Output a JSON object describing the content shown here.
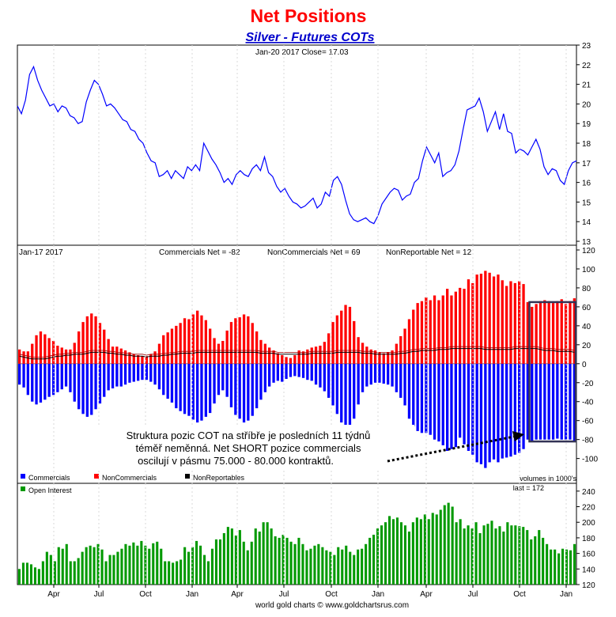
{
  "title": "Net Positions",
  "subtitle": "Silver - Futures COTs",
  "footer": "world gold charts © www.goldchartsrus.com",
  "colors": {
    "title": "#ff0000",
    "subtitle": "#0000cc",
    "price_line": "#0000ff",
    "commercials": "#0000ff",
    "noncommercials": "#ff0000",
    "nonreportables": "#000000",
    "open_interest": "#009900",
    "annotation_box": "#333355"
  },
  "x_tick_labels": [
    "Apr",
    "Jul",
    "Oct",
    "Jan",
    "Apr",
    "Jul",
    "Oct",
    "Jan",
    "Apr",
    "Jul",
    "Oct",
    "Jan"
  ],
  "chart_data": [
    {
      "type": "line",
      "header": "Jan-20  2017   Close= 17.03",
      "series": [
        {
          "name": "",
          "values": [
            19.9,
            19.5,
            20.2,
            21.5,
            21.9,
            21.2,
            20.7,
            20.3,
            19.9,
            20.0,
            19.6,
            19.9,
            19.8,
            19.4,
            19.3,
            19.0,
            19.1,
            20.1,
            20.7,
            21.2,
            21.0,
            20.5,
            19.9,
            20.0,
            19.8,
            19.5,
            19.2,
            19.1,
            18.7,
            18.6,
            18.2,
            18.0,
            17.5,
            17.1,
            17.0,
            16.3,
            16.4,
            16.6,
            16.2,
            16.6,
            16.4,
            16.2,
            16.8,
            16.6,
            16.9,
            16.6,
            18.0,
            17.6,
            17.2,
            16.9,
            16.5,
            16.0,
            16.2,
            15.9,
            16.4,
            16.6,
            16.4,
            16.3,
            16.7,
            16.9,
            16.6,
            17.3,
            16.5,
            16.3,
            15.8,
            15.5,
            15.7,
            15.3,
            15.0,
            14.9,
            14.7,
            14.8,
            15.0,
            15.2,
            14.7,
            14.9,
            15.5,
            15.3,
            16.1,
            16.3,
            15.9,
            15.1,
            14.4,
            14.1,
            14.0,
            14.1,
            14.2,
            14.0,
            13.9,
            14.3,
            14.9,
            15.2,
            15.5,
            15.7,
            15.6,
            15.1,
            15.3,
            15.4,
            16.0,
            16.2,
            17.1,
            17.8,
            17.4,
            17.0,
            17.5,
            16.3,
            16.5,
            16.6,
            16.9,
            17.6,
            18.7,
            19.7,
            19.8,
            19.9,
            20.3,
            19.6,
            18.6,
            19.1,
            19.6,
            18.7,
            19.5,
            18.6,
            18.5,
            17.5,
            17.7,
            17.6,
            17.4,
            17.8,
            18.2,
            17.7,
            16.8,
            16.4,
            16.7,
            16.6,
            16.1,
            15.9,
            16.6,
            17.0,
            17.1
          ]
        }
      ],
      "y_ticks": [
        13,
        14,
        15,
        16,
        17,
        18,
        19,
        20,
        21,
        22,
        23
      ],
      "ylim": [
        12.8,
        23.0
      ]
    },
    {
      "type": "bar",
      "header": "Jan-17  2017",
      "labels": {
        "commercials": "Commercials Net = -82",
        "noncommercials": "NonCommercials Net = 69",
        "nonreportables": "NonReportable Net = 12"
      },
      "series": [
        {
          "name": "Commercials",
          "values": [
            -22,
            -25,
            -33,
            -40,
            -43,
            -41,
            -38,
            -35,
            -33,
            -30,
            -27,
            -24,
            -30,
            -40,
            -48,
            -53,
            -56,
            -54,
            -48,
            -42,
            -35,
            -28,
            -26,
            -24,
            -24,
            -22,
            -20,
            -19,
            -18,
            -17,
            -17,
            -19,
            -22,
            -27,
            -33,
            -37,
            -41,
            -47,
            -50,
            -53,
            -55,
            -59,
            -62,
            -60,
            -56,
            -52,
            -42,
            -33,
            -28,
            -35,
            -46,
            -54,
            -58,
            -62,
            -60,
            -55,
            -47,
            -38,
            -30,
            -24,
            -20,
            -18,
            -19,
            -16,
            -14,
            -13,
            -14,
            -15,
            -17,
            -18,
            -22,
            -25,
            -29,
            -36,
            -44,
            -53,
            -62,
            -67,
            -69,
            -58,
            -43,
            -30,
            -24,
            -22,
            -20,
            -20,
            -21,
            -22,
            -24,
            -30,
            -36,
            -44,
            -58,
            -66,
            -71,
            -73,
            -73,
            -75,
            -80,
            -82,
            -86,
            -92,
            -90,
            -88,
            -78,
            -85,
            -92,
            -96,
            -104,
            -106,
            -110,
            -104,
            -101,
            -104,
            -100,
            -99,
            -98,
            -96,
            -94,
            -90,
            -80,
            -82,
            -80,
            -80,
            -80,
            -80,
            -80,
            -79,
            -80,
            -80,
            -80,
            -82
          ]
        },
        {
          "name": "NonCommercials",
          "values": [
            15,
            13,
            13,
            21,
            30,
            34,
            31,
            27,
            24,
            19,
            17,
            15,
            15,
            22,
            34,
            44,
            50,
            53,
            50,
            43,
            36,
            26,
            18,
            18,
            16,
            14,
            12,
            10,
            9,
            8,
            8,
            10,
            13,
            21,
            30,
            33,
            37,
            40,
            43,
            48,
            47,
            52,
            56,
            51,
            46,
            37,
            27,
            21,
            24,
            35,
            44,
            48,
            49,
            52,
            50,
            43,
            34,
            25,
            21,
            17,
            14,
            11,
            9,
            7,
            6,
            9,
            14,
            13,
            15,
            17,
            18,
            19,
            23,
            32,
            44,
            51,
            56,
            62,
            60,
            45,
            28,
            22,
            18,
            15,
            14,
            12,
            11,
            12,
            14,
            21,
            29,
            37,
            47,
            57,
            64,
            66,
            70,
            67,
            72,
            67,
            72,
            79,
            72,
            76,
            80,
            79,
            89,
            85,
            94,
            95,
            98,
            96,
            92,
            94,
            88,
            82,
            87,
            85,
            87,
            84,
            65,
            60,
            63,
            66,
            67,
            66,
            64,
            66,
            68,
            63,
            66,
            69
          ]
        },
        {
          "name": "NonReportables",
          "values": [
            8,
            7,
            6,
            5,
            5,
            5,
            5,
            6,
            7,
            8,
            8,
            9,
            9,
            10,
            10,
            10,
            11,
            12,
            12,
            12,
            12,
            11,
            11,
            10,
            10,
            9,
            9,
            8,
            8,
            8,
            7,
            8,
            8,
            8,
            9,
            9,
            10,
            10,
            11,
            11,
            11,
            11,
            12,
            12,
            12,
            12,
            12,
            12,
            12,
            12,
            12,
            12,
            12,
            12,
            12,
            12,
            12,
            11,
            11,
            11,
            11,
            10,
            10,
            10,
            10,
            10,
            10,
            10,
            10,
            11,
            11,
            11,
            11,
            11,
            11,
            12,
            12,
            12,
            12,
            12,
            12,
            11,
            11,
            11,
            10,
            10,
            10,
            10,
            10,
            10,
            11,
            11,
            12,
            13,
            13,
            14,
            14,
            14,
            14,
            15,
            15,
            15,
            16,
            16,
            16,
            16,
            16,
            16,
            16,
            16,
            15,
            15,
            15,
            15,
            15,
            15,
            15,
            16,
            16,
            16,
            16,
            16,
            16,
            15,
            14,
            14,
            14,
            13,
            13,
            13,
            13,
            12
          ]
        }
      ],
      "y_ticks": [
        -100,
        -80,
        -60,
        -40,
        -20,
        0,
        20,
        40,
        60,
        80,
        100,
        120
      ],
      "ylim": [
        -117,
        125
      ],
      "legend": [
        "Commercials",
        "NonCommercials",
        "NonReportables"
      ],
      "annotation": {
        "lines": [
          "Struktura pozic COT na stříbře je posledních 11 týdnů",
          "téměř neměnná. Net SHORT pozice commercials",
          "oscilují v pásmu 75.000 - 80.000 kontraktů."
        ]
      },
      "volume_note": "volumes in 1000's"
    },
    {
      "type": "bar",
      "last_label": "last = 172",
      "series": [
        {
          "name": "Open Interest",
          "values": [
            140,
            148,
            148,
            146,
            142,
            140,
            150,
            162,
            158,
            150,
            168,
            166,
            172,
            150,
            150,
            154,
            162,
            168,
            170,
            168,
            172,
            165,
            150,
            158,
            158,
            162,
            166,
            172,
            170,
            174,
            170,
            176,
            170,
            166,
            173,
            175,
            166,
            150,
            150,
            148,
            150,
            152,
            168,
            162,
            168,
            176,
            170,
            158,
            150,
            166,
            178,
            178,
            186,
            194,
            192,
            183,
            190,
            175,
            164,
            175,
            192,
            188,
            200,
            200,
            192,
            182,
            180,
            184,
            180,
            175,
            172,
            180,
            172,
            164,
            166,
            170,
            172,
            168,
            164,
            162,
            158,
            168,
            165,
            170,
            162,
            158,
            165,
            166,
            172,
            180,
            184,
            192,
            196,
            200,
            208,
            204,
            206,
            200,
            196,
            188,
            200,
            206,
            204,
            210,
            204,
            212,
            210,
            216,
            222,
            225,
            220,
            200,
            204,
            192,
            196,
            192,
            200,
            186,
            196,
            198,
            202,
            192,
            195,
            188,
            200,
            196,
            196,
            195,
            194,
            190,
            178,
            182,
            190,
            180,
            172,
            165,
            165,
            160,
            166,
            165,
            164,
            172
          ]
        }
      ],
      "y_ticks": [
        120,
        140,
        160,
        180,
        200,
        220,
        240
      ],
      "ylim": [
        120,
        250
      ]
    }
  ]
}
